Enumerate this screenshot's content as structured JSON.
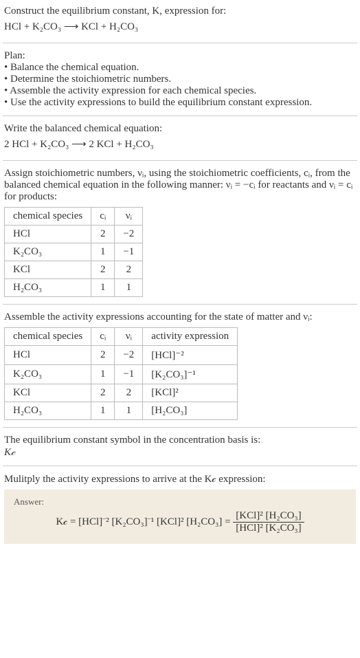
{
  "intro": {
    "line1": "Construct the equilibrium constant, K, expression for:",
    "eq_unbalanced": "HCl + K₂CO₃ ⟶ KCl + H₂CO₃"
  },
  "plan": {
    "title": "Plan:",
    "items": [
      "• Balance the chemical equation.",
      "• Determine the stoichiometric numbers.",
      "• Assemble the activity expression for each chemical species.",
      "• Use the activity expressions to build the equilibrium constant expression."
    ]
  },
  "balanced": {
    "title": "Write the balanced chemical equation:",
    "eq": "2 HCl + K₂CO₃ ⟶ 2 KCl + H₂CO₃"
  },
  "assign": {
    "text": "Assign stoichiometric numbers, νᵢ, using the stoichiometric coefficients, cᵢ, from the balanced chemical equation in the following manner: νᵢ = −cᵢ for reactants and νᵢ = cᵢ for products:",
    "headers": [
      "chemical species",
      "cᵢ",
      "νᵢ"
    ],
    "rows": [
      [
        "HCl",
        "2",
        "−2"
      ],
      [
        "K₂CO₃",
        "1",
        "−1"
      ],
      [
        "KCl",
        "2",
        "2"
      ],
      [
        "H₂CO₃",
        "1",
        "1"
      ]
    ]
  },
  "activity": {
    "text": "Assemble the activity expressions accounting for the state of matter and νᵢ:",
    "headers": [
      "chemical species",
      "cᵢ",
      "νᵢ",
      "activity expression"
    ],
    "rows": [
      [
        "HCl",
        "2",
        "−2",
        "[HCl]⁻²"
      ],
      [
        "K₂CO₃",
        "1",
        "−1",
        "[K₂CO₃]⁻¹"
      ],
      [
        "KCl",
        "2",
        "2",
        "[KCl]²"
      ],
      [
        "H₂CO₃",
        "1",
        "1",
        "[H₂CO₃]"
      ]
    ]
  },
  "symbol": {
    "line1": "The equilibrium constant symbol in the concentration basis is:",
    "line2": "K𝒸"
  },
  "multiply": {
    "text": "Mulitply the activity expressions to arrive at the K𝒸 expression:"
  },
  "answer": {
    "label": "Answer:",
    "lhs": "K𝒸 = [HCl]⁻² [K₂CO₃]⁻¹ [KCl]² [H₂CO₃] =",
    "num": "[KCl]² [H₂CO₃]",
    "den": "[HCl]² [K₂CO₃]"
  }
}
